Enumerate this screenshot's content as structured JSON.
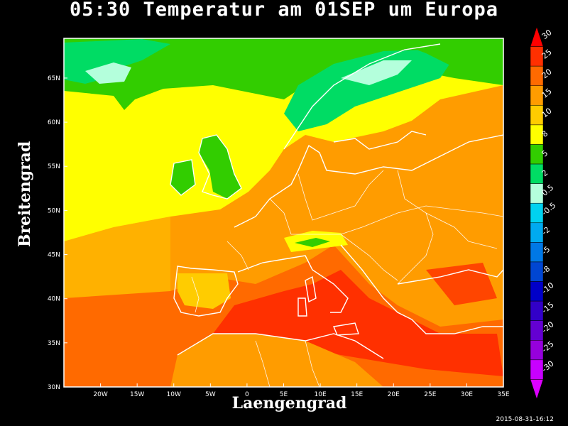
{
  "title": "05:30 Temperatur am 01SEP um Europa",
  "xlabel": "Laengengrad",
  "ylabel": "Breitengrad",
  "timestamp": "2015-08-31-16:12",
  "chart_data": {
    "type": "heatmap",
    "title": "05:30 Temperatur am 01SEP um Europa",
    "xlabel": "Laengengrad",
    "ylabel": "Breitengrad",
    "x_ticks": [
      "20W",
      "15W",
      "10W",
      "5W",
      "0",
      "5E",
      "10E",
      "15E",
      "20E",
      "25E",
      "30E",
      "35E"
    ],
    "y_ticks": [
      "30N",
      "35N",
      "40N",
      "45N",
      "50N",
      "55N",
      "60N",
      "65N"
    ],
    "x_range_deg": [
      -25,
      35
    ],
    "y_range_deg": [
      30,
      69.5
    ],
    "colorbar": {
      "levels": [
        "30",
        "25",
        "20",
        "15",
        "10",
        "8",
        "5",
        "2",
        "0.5",
        "-0.5",
        "-2",
        "-5",
        "-8",
        "-10",
        "-15",
        "-20",
        "-25",
        "-30"
      ],
      "colors": [
        "#ff0000",
        "#ff3000",
        "#ff6a00",
        "#ff9c00",
        "#ffcc00",
        "#ffff00",
        "#32cd00",
        "#00dc64",
        "#b4ffdc",
        "#00d2f0",
        "#00aaf0",
        "#0078e6",
        "#0046d2",
        "#0000c8",
        "#3200c8",
        "#6400d2",
        "#9600dc",
        "#c800ff",
        "#dc00ff"
      ]
    }
  }
}
